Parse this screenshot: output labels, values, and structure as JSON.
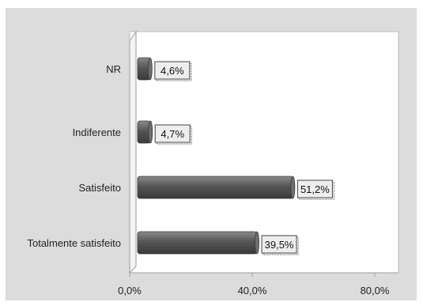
{
  "chart_data": {
    "type": "bar",
    "orientation": "horizontal",
    "categories": [
      "NR",
      "Indiferente",
      "Satisfeito",
      "Totalmente satisfeito"
    ],
    "values": [
      4.6,
      4.7,
      51.2,
      39.5
    ],
    "data_labels": [
      "4,6%",
      "4,7%",
      "51,2%",
      "39,5%"
    ],
    "x_ticks": [
      0,
      40,
      80
    ],
    "x_tick_labels": [
      "0,0%",
      "40,0%",
      "80,0%"
    ],
    "xlim": [
      0,
      80
    ],
    "title": "",
    "xlabel": "",
    "ylabel": "",
    "grid": false,
    "legend": "none",
    "colors": {
      "bar": "#555555",
      "bar_highlight": "#8a8a8a",
      "background": "#dcdcdc",
      "plot": "#ffffff",
      "label_box": "#eeeeee"
    }
  }
}
